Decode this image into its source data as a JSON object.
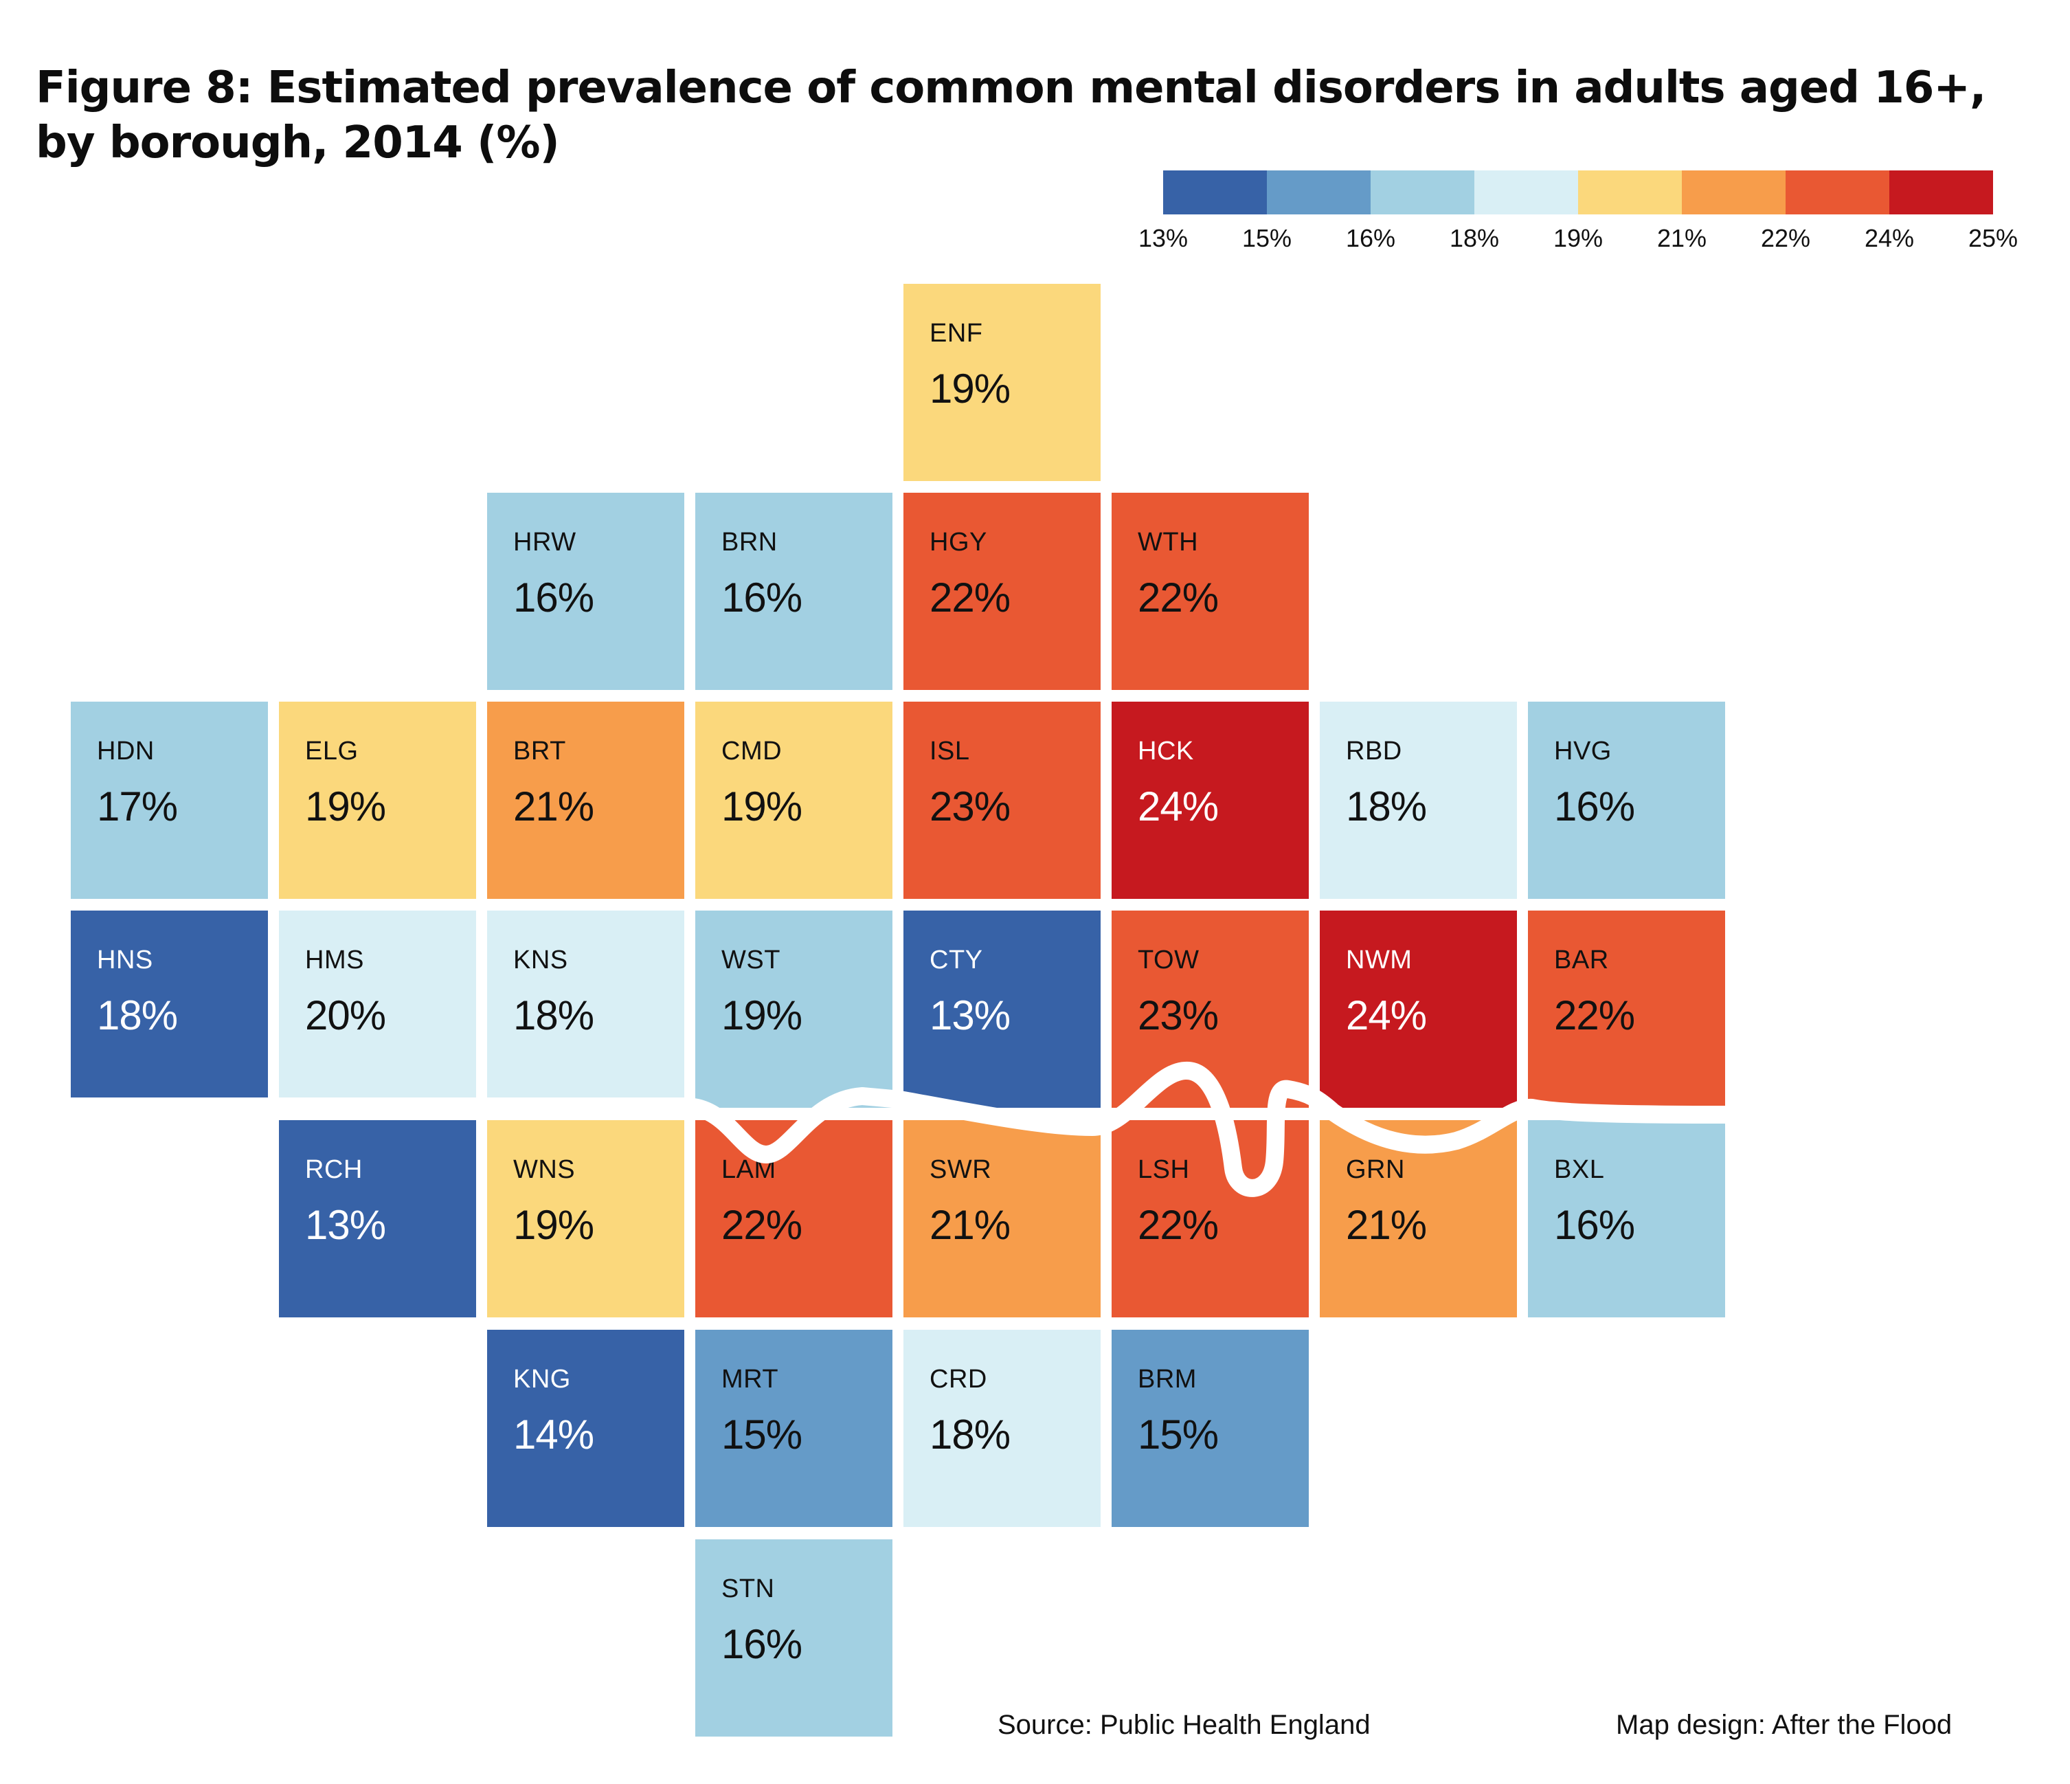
{
  "title": "Figure 8: Estimated prevalence of common mental disorders in adults aged 16+, by borough, 2014 (%)",
  "legend": {
    "colors": [
      "#3762a7",
      "#659bc8",
      "#a2d0e2",
      "#d9eff5",
      "#fbd87c",
      "#f79d4b",
      "#e95833",
      "#c6191f"
    ],
    "ticks": [
      "13%",
      "15%",
      "16%",
      "18%",
      "19%",
      "21%",
      "22%",
      "24%",
      "25%"
    ]
  },
  "footer": {
    "source": "Source: Public Health England",
    "credit": "Map design: After the Flood"
  },
  "chart_data": {
    "type": "heatmap",
    "subtype": "tile-map",
    "title": "Figure 8: Estimated prevalence of common mental disorders in adults aged 16+, by borough, 2014 (%)",
    "unit": "%",
    "scale_breaks": [
      13,
      15,
      16,
      18,
      19,
      21,
      22,
      24,
      25
    ],
    "scale_colors": [
      "#3762a7",
      "#659bc8",
      "#a2d0e2",
      "#d9eff5",
      "#fbd87c",
      "#f79d4b",
      "#e95833",
      "#c6191f"
    ],
    "legend_position": "top-right",
    "tiles": [
      {
        "code": "ENF",
        "value": 19,
        "label": "19%",
        "row": 0,
        "col": 4,
        "color": "#fbd87c"
      },
      {
        "code": "HRW",
        "value": 16,
        "label": "16%",
        "row": 1,
        "col": 2,
        "color": "#a2d0e2"
      },
      {
        "code": "BRN",
        "value": 16,
        "label": "16%",
        "row": 1,
        "col": 3,
        "color": "#a2d0e2"
      },
      {
        "code": "HGY",
        "value": 22,
        "label": "22%",
        "row": 1,
        "col": 4,
        "color": "#e95833"
      },
      {
        "code": "WTH",
        "value": 22,
        "label": "22%",
        "row": 1,
        "col": 5,
        "color": "#e95833"
      },
      {
        "code": "HDN",
        "value": 17,
        "label": "17%",
        "row": 2,
        "col": 0,
        "color": "#a2d0e2"
      },
      {
        "code": "ELG",
        "value": 19,
        "label": "19%",
        "row": 2,
        "col": 1,
        "color": "#fbd87c"
      },
      {
        "code": "BRT",
        "value": 21,
        "label": "21%",
        "row": 2,
        "col": 2,
        "color": "#f79d4b"
      },
      {
        "code": "CMD",
        "value": 19,
        "label": "19%",
        "row": 2,
        "col": 3,
        "color": "#fbd87c"
      },
      {
        "code": "ISL",
        "value": 23,
        "label": "23%",
        "row": 2,
        "col": 4,
        "color": "#e95833"
      },
      {
        "code": "HCK",
        "value": 24,
        "label": "24%",
        "row": 2,
        "col": 5,
        "color": "#c6191f",
        "dark": true
      },
      {
        "code": "RBD",
        "value": 18,
        "label": "18%",
        "row": 2,
        "col": 6,
        "color": "#d9eff5"
      },
      {
        "code": "HVG",
        "value": 16,
        "label": "16%",
        "row": 2,
        "col": 7,
        "color": "#a2d0e2"
      },
      {
        "code": "HNS",
        "value": 18,
        "label": "18%",
        "row": 3,
        "col": 0,
        "color": "#3762a7",
        "dark": true
      },
      {
        "code": "HMS",
        "value": 20,
        "label": "20%",
        "row": 3,
        "col": 1,
        "color": "#d9eff5"
      },
      {
        "code": "KNS",
        "value": 18,
        "label": "18%",
        "row": 3,
        "col": 2,
        "color": "#d9eff5"
      },
      {
        "code": "WST",
        "value": 19,
        "label": "19%",
        "row": 3,
        "col": 3,
        "color": "#a2d0e2"
      },
      {
        "code": "CTY",
        "value": 13,
        "label": "13%",
        "row": 3,
        "col": 4,
        "color": "#3762a7",
        "dark": true
      },
      {
        "code": "TOW",
        "value": 23,
        "label": "23%",
        "row": 3,
        "col": 5,
        "color": "#e95833"
      },
      {
        "code": "NWM",
        "value": 24,
        "label": "24%",
        "row": 3,
        "col": 6,
        "color": "#c6191f",
        "dark": true
      },
      {
        "code": "BAR",
        "value": 22,
        "label": "22%",
        "row": 3,
        "col": 7,
        "color": "#e95833"
      },
      {
        "code": "RCH",
        "value": 13,
        "label": "13%",
        "row": 4,
        "col": 1,
        "color": "#3762a7",
        "dark": true
      },
      {
        "code": "WNS",
        "value": 19,
        "label": "19%",
        "row": 4,
        "col": 2,
        "color": "#fbd87c"
      },
      {
        "code": "LAM",
        "value": 22,
        "label": "22%",
        "row": 4,
        "col": 3,
        "color": "#e95833"
      },
      {
        "code": "SWR",
        "value": 21,
        "label": "21%",
        "row": 4,
        "col": 4,
        "color": "#f79d4b"
      },
      {
        "code": "LSH",
        "value": 22,
        "label": "22%",
        "row": 4,
        "col": 5,
        "color": "#e95833"
      },
      {
        "code": "GRN",
        "value": 21,
        "label": "21%",
        "row": 4,
        "col": 6,
        "color": "#f79d4b"
      },
      {
        "code": "BXL",
        "value": 16,
        "label": "16%",
        "row": 4,
        "col": 7,
        "color": "#a2d0e2"
      },
      {
        "code": "KNG",
        "value": 14,
        "label": "14%",
        "row": 5,
        "col": 2,
        "color": "#3762a7",
        "dark": true
      },
      {
        "code": "MRT",
        "value": 15,
        "label": "15%",
        "row": 5,
        "col": 3,
        "color": "#659bc8"
      },
      {
        "code": "CRD",
        "value": 18,
        "label": "18%",
        "row": 5,
        "col": 4,
        "color": "#d9eff5"
      },
      {
        "code": "BRM",
        "value": 15,
        "label": "15%",
        "row": 5,
        "col": 5,
        "color": "#659bc8"
      },
      {
        "code": "STN",
        "value": 16,
        "label": "16%",
        "row": 6,
        "col": 3,
        "color": "#a2d0e2"
      }
    ]
  }
}
